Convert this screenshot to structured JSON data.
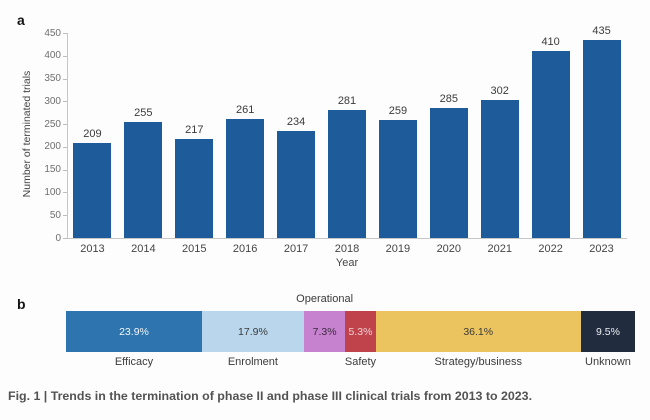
{
  "figure": {
    "panel_a_label": "a",
    "panel_b_label": "b",
    "caption": "Fig. 1 | Trends in the termination of phase II and phase III clinical trials from 2013 to 2023."
  },
  "chart_data": [
    {
      "type": "bar",
      "panel": "a",
      "categories": [
        "2013",
        "2014",
        "2015",
        "2016",
        "2017",
        "2018",
        "2019",
        "2020",
        "2021",
        "2022",
        "2023"
      ],
      "values": [
        209,
        255,
        217,
        261,
        234,
        281,
        259,
        285,
        302,
        410,
        435
      ],
      "xlabel": "Year",
      "ylabel": "Number of terminated trials",
      "ylim": [
        0,
        450
      ],
      "ytick_step": 50,
      "bar_color": "#1d5b9b",
      "grid": false,
      "legend": "none"
    },
    {
      "type": "stacked-bar",
      "panel": "b",
      "orientation": "horizontal",
      "segments": [
        {
          "label": "Efficacy",
          "value_pct": 23.9,
          "display": "23.9%",
          "color": "#2e74ae",
          "text_color": "#f2f6fa",
          "label_position": "below"
        },
        {
          "label": "Enrolment",
          "value_pct": 17.9,
          "display": "17.9%",
          "color": "#b9d6ec",
          "text_color": "#3b3b3b",
          "label_position": "below"
        },
        {
          "label": "Operational",
          "value_pct": 7.3,
          "display": "7.3%",
          "color": "#c681cf",
          "text_color": "#3a2b3e",
          "label_position": "above"
        },
        {
          "label": "Safety",
          "value_pct": 5.3,
          "display": "5.3%",
          "color": "#c0434b",
          "text_color": "#f0d2d5",
          "label_position": "below"
        },
        {
          "label": "Strategy/business",
          "value_pct": 36.1,
          "display": "36.1%",
          "color": "#ecc45f",
          "text_color": "#3b3b3b",
          "label_position": "below"
        },
        {
          "label": "Unknown",
          "value_pct": 9.5,
          "display": "9.5%",
          "color": "#212d3f",
          "text_color": "#eef0f3",
          "label_position": "below"
        }
      ]
    }
  ],
  "colors": {
    "axis_line": "#c6c6c6",
    "tick_text": "#6f6f6f",
    "label_text": "#3b3b3b",
    "caption_text": "#535353"
  }
}
